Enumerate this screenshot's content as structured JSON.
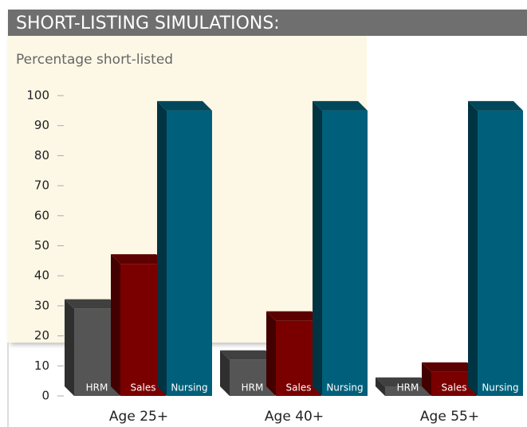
{
  "chart_data": {
    "type": "bar",
    "title": "SHORT-LISTING SIMULATIONS:",
    "subtitle": "Percentage short-listed",
    "categories": [
      "Age 25+",
      "Age 40+",
      "Age 55+"
    ],
    "series": [
      {
        "name": "HRM",
        "color": "#555555",
        "values": [
          29,
          12,
          3
        ]
      },
      {
        "name": "Sales",
        "color": "#7a0000",
        "values": [
          44,
          25,
          8
        ]
      },
      {
        "name": "Nursing",
        "color": "#005f7a",
        "values": [
          95,
          95,
          95
        ]
      }
    ],
    "ylim": [
      0,
      100
    ],
    "yticks": [
      0,
      10,
      20,
      30,
      40,
      50,
      60,
      70,
      80,
      90,
      100
    ]
  }
}
